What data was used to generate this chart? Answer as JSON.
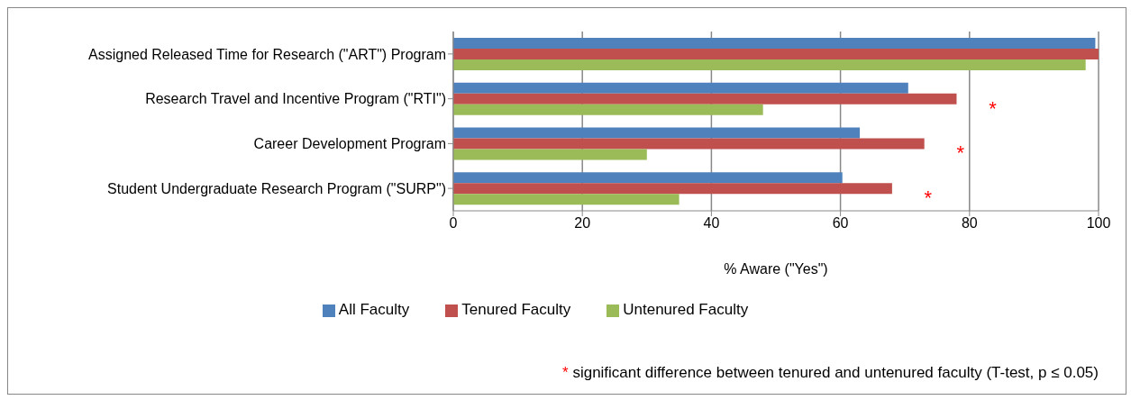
{
  "chart_data": {
    "type": "bar",
    "orientation": "horizontal",
    "xlabel": "% Aware (\"Yes\")",
    "categories": [
      "Assigned Released Time for Research (\"ART\") Program",
      "Research Travel and Incentive Program (\"RTI\")",
      "Career Development Program",
      "Student Undergraduate Research Program (\"SURP\")"
    ],
    "series": [
      {
        "name": "All Faculty",
        "color": "#4f81bd",
        "values": [
          99.5,
          70.5,
          63,
          60.3
        ]
      },
      {
        "name": "Tenured Faculty",
        "color": "#c0504d",
        "values": [
          100,
          78,
          73,
          68
        ]
      },
      {
        "name": "Untenured Faculty",
        "color": "#9bbb59",
        "values": [
          98,
          48,
          30,
          35
        ]
      }
    ],
    "xlim": [
      0,
      100
    ],
    "xticks": [
      0,
      20,
      40,
      60,
      80,
      100
    ],
    "grid": "x",
    "legend": "bottom",
    "annotations": [
      {
        "text": "*",
        "x": 78,
        "y": "Research Travel and Incentive Program (\"RTI\")"
      },
      {
        "text": "*",
        "x": 73,
        "y": "Career Development Program"
      },
      {
        "text": "*",
        "x": 68,
        "y": "Student Undergraduate Research Program (\"SURP\")"
      },
      "* significant difference between tenured and untenured faculty (T-test, p ≤ 0.05)"
    ]
  }
}
